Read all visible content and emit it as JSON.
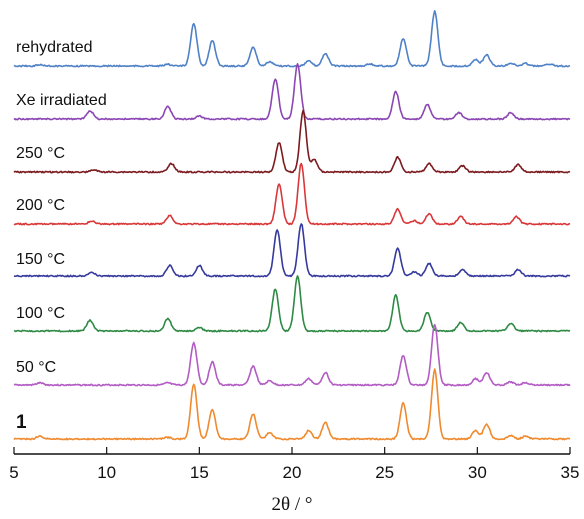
{
  "chart_data": {
    "type": "line",
    "title": "",
    "xlabel": "2θ / °",
    "ylabel": "",
    "xlim": [
      5,
      35
    ],
    "xticks": [
      "5",
      "10",
      "15",
      "20",
      "25",
      "30",
      "35"
    ],
    "y_axis_shown": false,
    "grid": false,
    "legend": "none",
    "series": [
      {
        "name": "rehydrated",
        "color": "#4f81c7",
        "peaks": [
          {
            "x": 6.4,
            "h": 0.03
          },
          {
            "x": 13.3,
            "h": 0.04
          },
          {
            "x": 14.7,
            "h": 1.0
          },
          {
            "x": 15.7,
            "h": 0.6
          },
          {
            "x": 17.9,
            "h": 0.45
          },
          {
            "x": 18.8,
            "h": 0.1
          },
          {
            "x": 20.9,
            "h": 0.12
          },
          {
            "x": 21.8,
            "h": 0.3
          },
          {
            "x": 24.2,
            "h": 0.05
          },
          {
            "x": 26.0,
            "h": 0.65
          },
          {
            "x": 27.7,
            "h": 1.3
          },
          {
            "x": 29.9,
            "h": 0.15
          },
          {
            "x": 30.5,
            "h": 0.27
          },
          {
            "x": 31.8,
            "h": 0.07
          },
          {
            "x": 32.6,
            "h": 0.06
          },
          {
            "x": 33.9,
            "h": 0.05
          }
        ]
      },
      {
        "name": "Xe irradiated",
        "color": "#8b46b4",
        "peaks": [
          {
            "x": 9.1,
            "h": 0.2
          },
          {
            "x": 13.3,
            "h": 0.3
          },
          {
            "x": 15.0,
            "h": 0.07
          },
          {
            "x": 19.1,
            "h": 0.95
          },
          {
            "x": 20.3,
            "h": 1.3
          },
          {
            "x": 25.6,
            "h": 0.65
          },
          {
            "x": 27.3,
            "h": 0.35
          },
          {
            "x": 29.0,
            "h": 0.15
          },
          {
            "x": 31.8,
            "h": 0.15
          }
        ]
      },
      {
        "name": "250 °C",
        "color": "#7b1a1f",
        "peaks": [
          {
            "x": 9.3,
            "h": 0.05
          },
          {
            "x": 13.5,
            "h": 0.2
          },
          {
            "x": 19.3,
            "h": 0.7
          },
          {
            "x": 20.6,
            "h": 1.45
          },
          {
            "x": 21.2,
            "h": 0.3
          },
          {
            "x": 25.7,
            "h": 0.35
          },
          {
            "x": 27.4,
            "h": 0.2
          },
          {
            "x": 29.2,
            "h": 0.15
          },
          {
            "x": 32.2,
            "h": 0.18
          }
        ]
      },
      {
        "name": "200 °C",
        "color": "#d9383a",
        "peaks": [
          {
            "x": 9.2,
            "h": 0.07
          },
          {
            "x": 13.4,
            "h": 0.2
          },
          {
            "x": 19.3,
            "h": 0.95
          },
          {
            "x": 20.5,
            "h": 1.45
          },
          {
            "x": 25.7,
            "h": 0.35
          },
          {
            "x": 26.6,
            "h": 0.08
          },
          {
            "x": 27.4,
            "h": 0.25
          },
          {
            "x": 29.1,
            "h": 0.18
          },
          {
            "x": 32.1,
            "h": 0.18
          }
        ]
      },
      {
        "name": "150 °C",
        "color": "#353a9c",
        "peaks": [
          {
            "x": 9.2,
            "h": 0.08
          },
          {
            "x": 13.4,
            "h": 0.25
          },
          {
            "x": 15.0,
            "h": 0.25
          },
          {
            "x": 19.2,
            "h": 1.1
          },
          {
            "x": 20.5,
            "h": 1.25
          },
          {
            "x": 25.7,
            "h": 0.65
          },
          {
            "x": 26.6,
            "h": 0.1
          },
          {
            "x": 27.4,
            "h": 0.3
          },
          {
            "x": 29.2,
            "h": 0.15
          },
          {
            "x": 32.2,
            "h": 0.15
          }
        ]
      },
      {
        "name": "100 °C",
        "color": "#2e8a44",
        "peaks": [
          {
            "x": 9.1,
            "h": 0.25
          },
          {
            "x": 13.3,
            "h": 0.3
          },
          {
            "x": 15.0,
            "h": 0.08
          },
          {
            "x": 19.1,
            "h": 1.0
          },
          {
            "x": 20.3,
            "h": 1.3
          },
          {
            "x": 25.6,
            "h": 0.85
          },
          {
            "x": 27.3,
            "h": 0.45
          },
          {
            "x": 29.1,
            "h": 0.2
          },
          {
            "x": 31.8,
            "h": 0.18
          }
        ]
      },
      {
        "name": "50 °C",
        "color": "#b25cc4",
        "peaks": [
          {
            "x": 6.4,
            "h": 0.05
          },
          {
            "x": 13.3,
            "h": 0.05
          },
          {
            "x": 14.7,
            "h": 1.0
          },
          {
            "x": 15.7,
            "h": 0.55
          },
          {
            "x": 17.9,
            "h": 0.45
          },
          {
            "x": 18.8,
            "h": 0.1
          },
          {
            "x": 20.9,
            "h": 0.15
          },
          {
            "x": 21.8,
            "h": 0.3
          },
          {
            "x": 26.0,
            "h": 0.7
          },
          {
            "x": 27.7,
            "h": 1.45
          },
          {
            "x": 29.9,
            "h": 0.15
          },
          {
            "x": 30.5,
            "h": 0.3
          },
          {
            "x": 31.8,
            "h": 0.07
          },
          {
            "x": 32.6,
            "h": 0.06
          }
        ]
      },
      {
        "name": "1",
        "color": "#ef8a2f",
        "peaks": [
          {
            "x": 6.4,
            "h": 0.07
          },
          {
            "x": 13.3,
            "h": 0.04
          },
          {
            "x": 14.7,
            "h": 1.3
          },
          {
            "x": 15.7,
            "h": 0.7
          },
          {
            "x": 17.9,
            "h": 0.6
          },
          {
            "x": 18.8,
            "h": 0.15
          },
          {
            "x": 20.9,
            "h": 0.2
          },
          {
            "x": 21.8,
            "h": 0.4
          },
          {
            "x": 26.0,
            "h": 0.85
          },
          {
            "x": 27.7,
            "h": 1.65
          },
          {
            "x": 29.9,
            "h": 0.2
          },
          {
            "x": 30.5,
            "h": 0.35
          },
          {
            "x": 31.8,
            "h": 0.08
          },
          {
            "x": 32.6,
            "h": 0.07
          }
        ]
      }
    ]
  }
}
